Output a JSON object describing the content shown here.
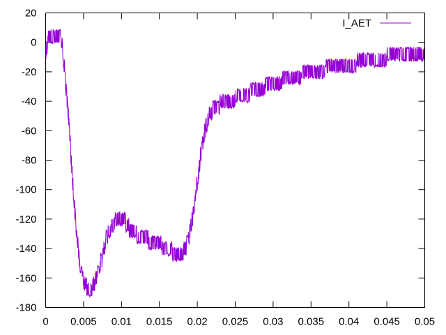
{
  "chart_data": {
    "type": "line",
    "title": "",
    "xlabel": "",
    "ylabel": "",
    "xlim": [
      0,
      0.05
    ],
    "ylim": [
      -180,
      20
    ],
    "grid": false,
    "legend_position": "top-right",
    "x_ticks": [
      0,
      0.005,
      0.01,
      0.015,
      0.02,
      0.025,
      0.03,
      0.035,
      0.04,
      0.045,
      0.05
    ],
    "x_tick_labels": [
      "0",
      "0.005",
      "0.01",
      "0.015",
      "0.02",
      "0.025",
      "0.03",
      "0.035",
      "0.04",
      "0.045",
      "0.05"
    ],
    "y_ticks": [
      20,
      0,
      -20,
      -40,
      -60,
      -80,
      -100,
      -120,
      -140,
      -160,
      -180
    ],
    "y_tick_labels": [
      "20",
      "0",
      "-20",
      "-40",
      "-60",
      "-80",
      "-100",
      "-120",
      "-140",
      "-160",
      "-180"
    ],
    "series": [
      {
        "name": "I_AET",
        "color": "#9400d3",
        "noise_band": 8,
        "points": [
          [
            0.0,
            -8
          ],
          [
            0.0003,
            2
          ],
          [
            0.001,
            4
          ],
          [
            0.0018,
            4
          ],
          [
            0.0022,
            -2
          ],
          [
            0.0025,
            -20
          ],
          [
            0.003,
            -50
          ],
          [
            0.0035,
            -90
          ],
          [
            0.004,
            -125
          ],
          [
            0.0045,
            -150
          ],
          [
            0.005,
            -162
          ],
          [
            0.0055,
            -167
          ],
          [
            0.006,
            -167
          ],
          [
            0.0065,
            -163
          ],
          [
            0.007,
            -155
          ],
          [
            0.0075,
            -145
          ],
          [
            0.008,
            -133
          ],
          [
            0.0085,
            -127
          ],
          [
            0.009,
            -123
          ],
          [
            0.0095,
            -120
          ],
          [
            0.01,
            -120
          ],
          [
            0.0105,
            -122
          ],
          [
            0.011,
            -126
          ],
          [
            0.012,
            -130
          ],
          [
            0.013,
            -133
          ],
          [
            0.014,
            -135
          ],
          [
            0.015,
            -137
          ],
          [
            0.016,
            -140
          ],
          [
            0.017,
            -143
          ],
          [
            0.0175,
            -144
          ],
          [
            0.018,
            -143
          ],
          [
            0.0185,
            -140
          ],
          [
            0.019,
            -130
          ],
          [
            0.0195,
            -115
          ],
          [
            0.02,
            -95
          ],
          [
            0.0205,
            -75
          ],
          [
            0.021,
            -60
          ],
          [
            0.0215,
            -50
          ],
          [
            0.022,
            -46
          ],
          [
            0.023,
            -42
          ],
          [
            0.025,
            -38
          ],
          [
            0.027,
            -34
          ],
          [
            0.03,
            -28
          ],
          [
            0.033,
            -23
          ],
          [
            0.036,
            -19
          ],
          [
            0.04,
            -15
          ],
          [
            0.045,
            -10
          ],
          [
            0.05,
            -6
          ]
        ]
      }
    ]
  }
}
